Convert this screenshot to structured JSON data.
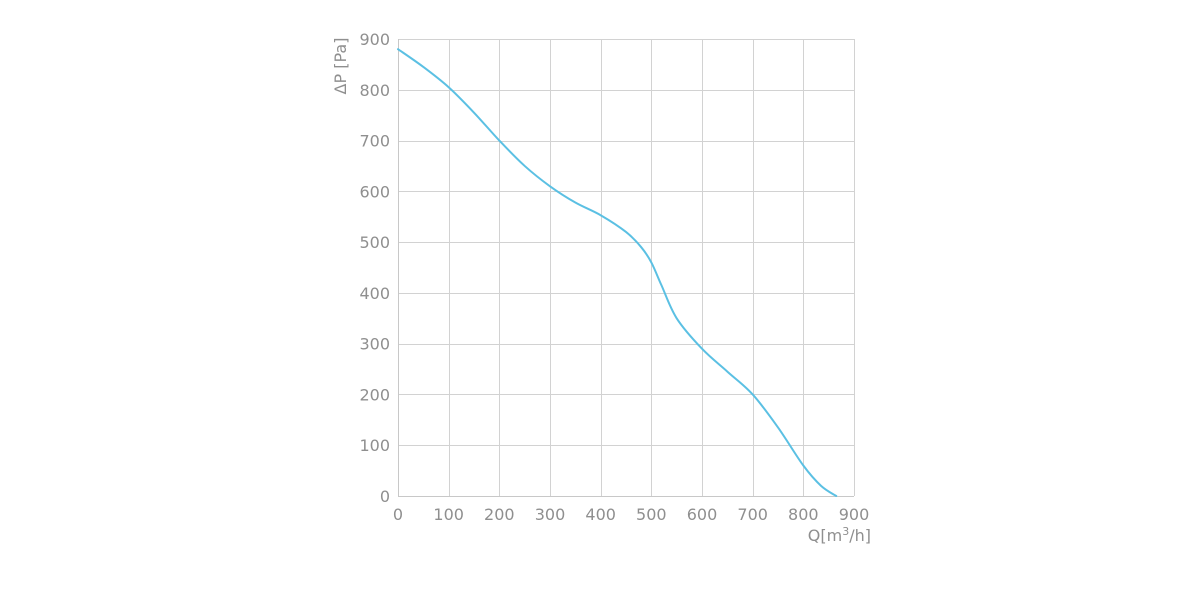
{
  "chart_data": {
    "type": "line",
    "title": "",
    "xlabel": "Q[m³/h]",
    "ylabel": "ΔP [Pa]",
    "xlim": [
      0,
      900
    ],
    "ylim": [
      0,
      900
    ],
    "grid": true,
    "x_ticks": [
      0,
      100,
      200,
      300,
      400,
      500,
      600,
      700,
      800,
      900
    ],
    "y_ticks": [
      0,
      100,
      200,
      300,
      400,
      500,
      600,
      700,
      800,
      900
    ],
    "x_tick_labels": [
      "0",
      "100",
      "200",
      "300",
      "400",
      "500",
      "600",
      "700",
      "800",
      "900"
    ],
    "y_tick_labels": [
      "0",
      "100",
      "200",
      "300",
      "400",
      "500",
      "600",
      "700",
      "800",
      "900"
    ],
    "line_color": "#5bc0e3",
    "grid_color": "#d2d2d2",
    "series": [
      {
        "x": [
          0,
          50,
          100,
          150,
          200,
          250,
          300,
          350,
          400,
          450,
          480,
          500,
          520,
          550,
          600,
          650,
          700,
          750,
          800,
          835,
          865
        ],
        "y": [
          880,
          845,
          805,
          755,
          700,
          650,
          610,
          578,
          553,
          520,
          490,
          460,
          415,
          350,
          290,
          245,
          200,
          135,
          60,
          20,
          0
        ]
      }
    ]
  }
}
